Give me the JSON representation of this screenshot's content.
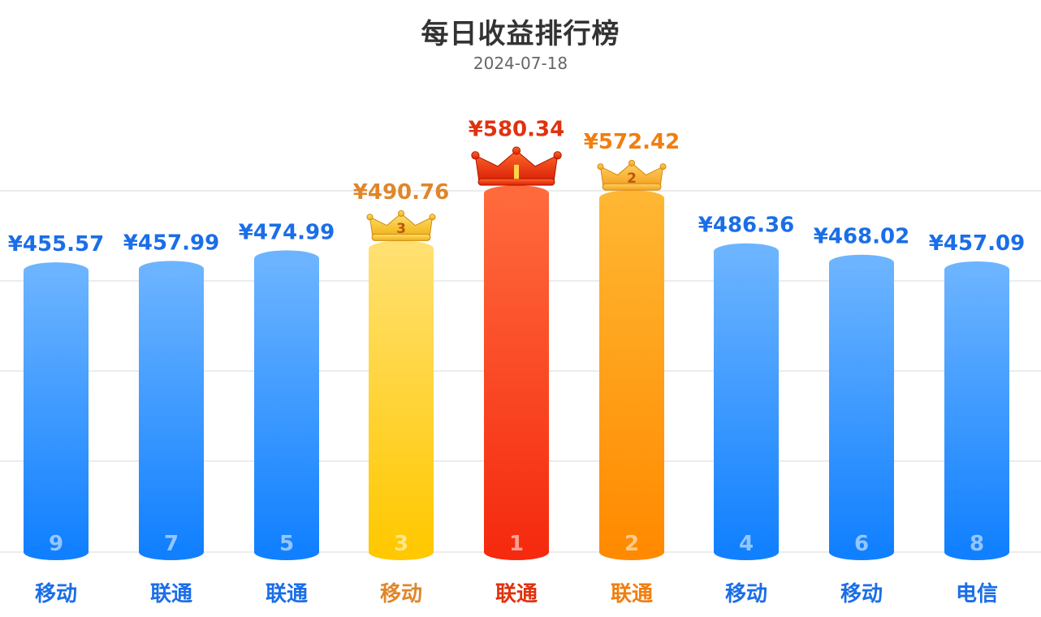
{
  "header": {
    "title": "每日收益排行榜",
    "date": "2024-07-18"
  },
  "chart_data": {
    "type": "bar",
    "title": "每日收益排行榜",
    "subtitle": "2024-07-18",
    "categories": [
      "移动",
      "联通",
      "联通",
      "移动",
      "联通",
      "联通",
      "移动",
      "移动",
      "电信"
    ],
    "values": [
      455.57,
      457.99,
      474.99,
      490.76,
      580.34,
      572.42,
      486.36,
      468.02,
      457.09
    ],
    "value_labels": [
      "¥455.57",
      "¥457.99",
      "¥474.99",
      "¥490.76",
      "¥580.34",
      "¥572.42",
      "¥486.36",
      "¥468.02",
      "¥457.09"
    ],
    "ranks": [
      "9",
      "7",
      "5",
      "3",
      "1",
      "2",
      "4",
      "6",
      "8"
    ],
    "crown_labels": {
      "1": "1",
      "2": "2",
      "3": "3"
    },
    "currency": "¥",
    "ylim": [
      0,
      600
    ],
    "grid": true,
    "legend": "none",
    "colors": {
      "default": {
        "top": "#6cb4ff",
        "bottom": "#1180ff",
        "label": "#1a6ee8"
      },
      "1": {
        "top": "#ff6a3d",
        "bottom": "#f52a0e",
        "label": "#e0320f"
      },
      "2": {
        "top": "#ffb632",
        "bottom": "#ff8a00",
        "label": "#f07e10"
      },
      "3": {
        "top": "#ffe070",
        "bottom": "#ffc800",
        "label": "#e0862a"
      }
    }
  }
}
